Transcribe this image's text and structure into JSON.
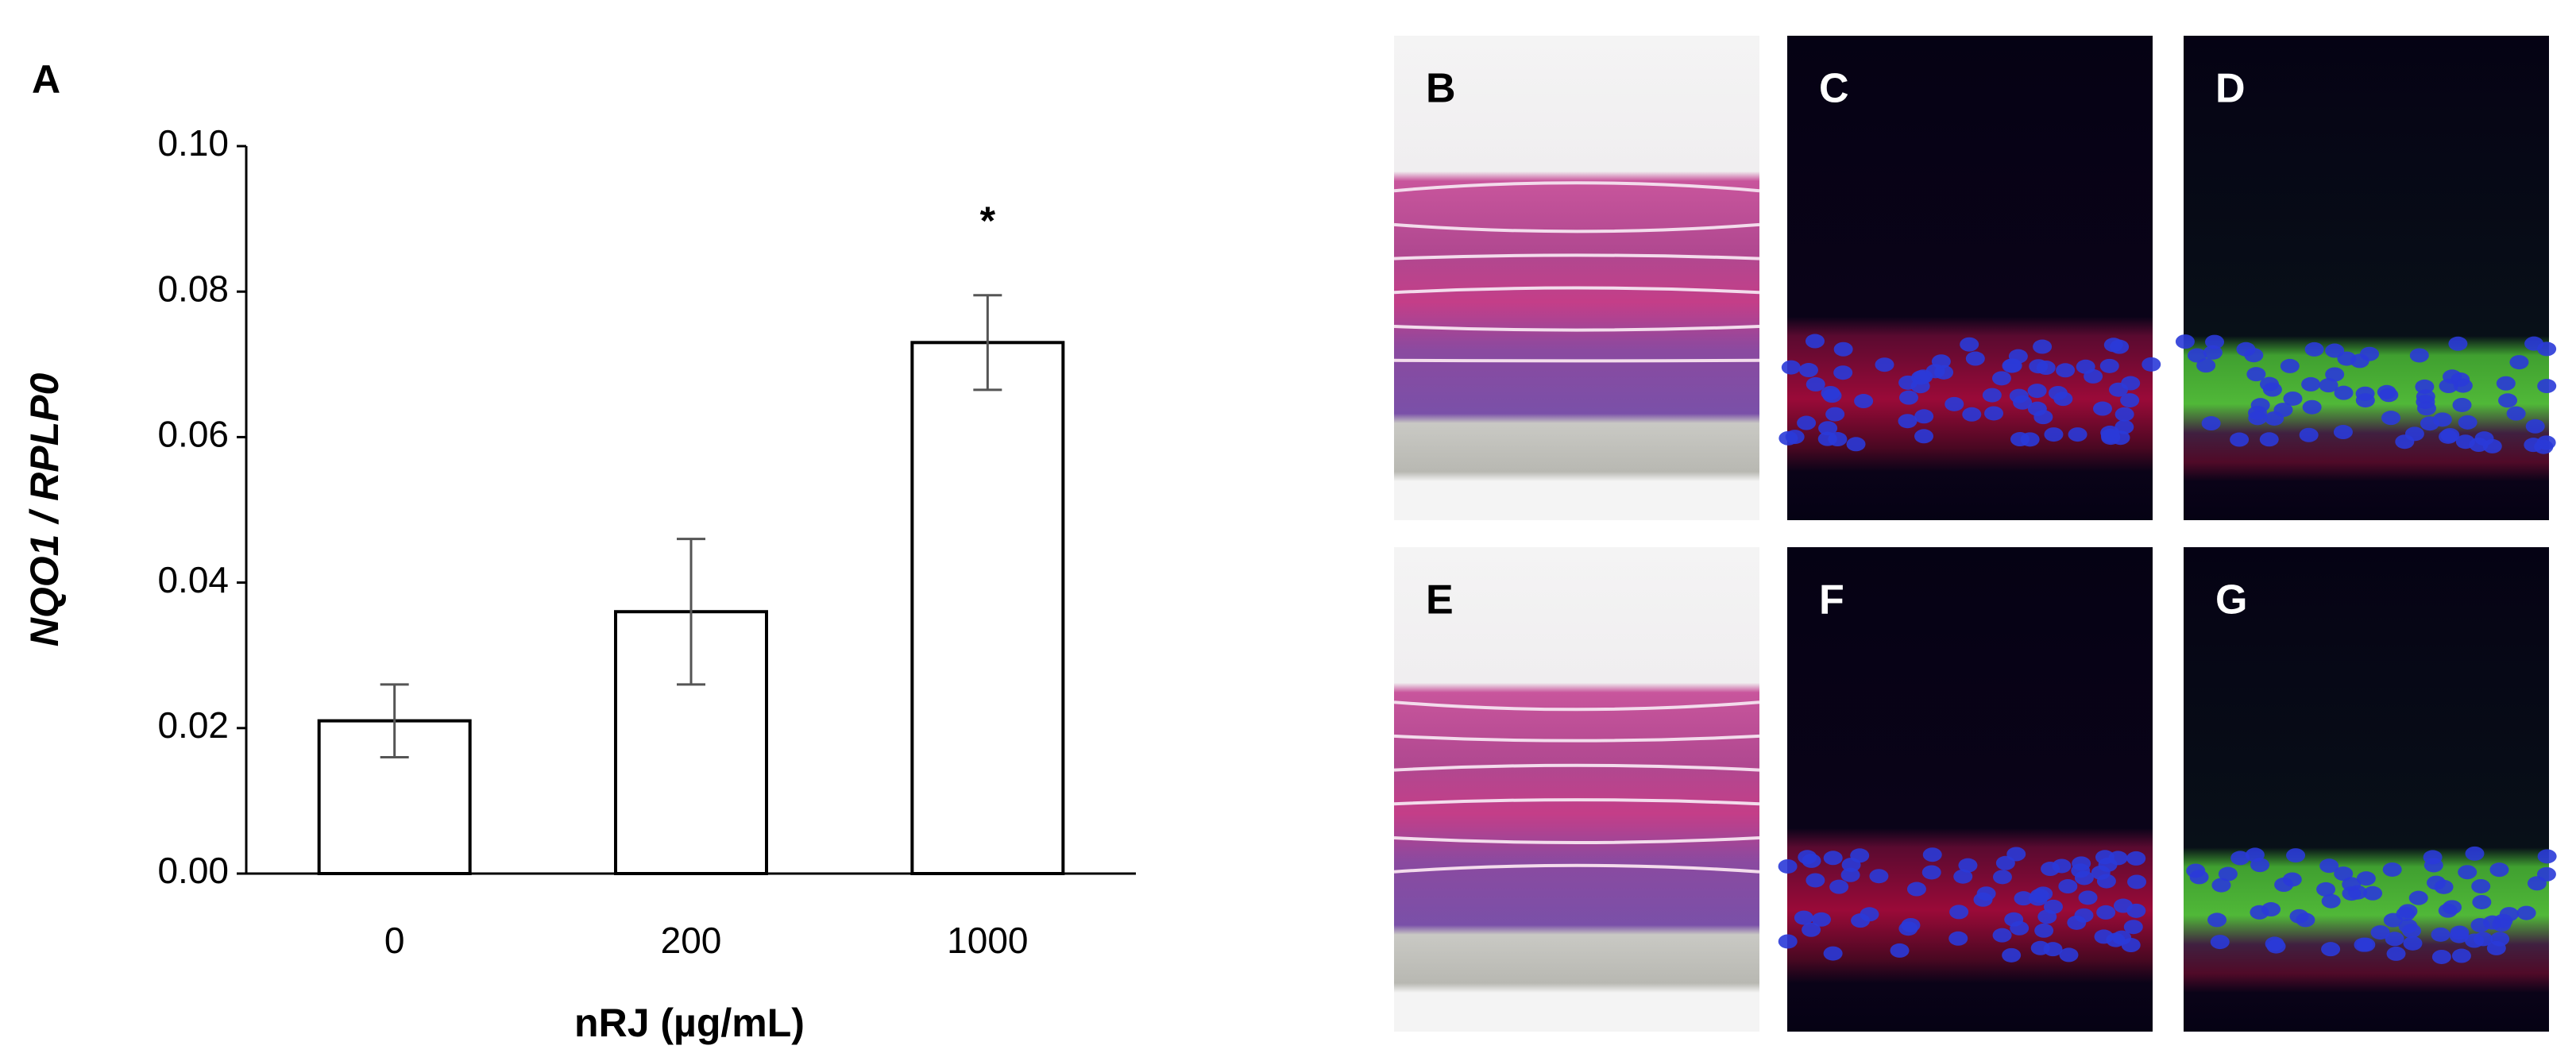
{
  "chart_data": {
    "type": "bar",
    "panel_label": "A",
    "categories": [
      "0",
      "200",
      "1000"
    ],
    "values": [
      0.021,
      0.036,
      0.073
    ],
    "errors": [
      0.005,
      0.01,
      0.0065
    ],
    "significance": [
      null,
      null,
      "*"
    ],
    "color": "#ffffff",
    "x_label": "nRJ (µg/mL)",
    "y_label": "NQO1 / RPLP0",
    "ylim": [
      0,
      0.1
    ],
    "yticks": [
      {
        "value": 0,
        "label": "0.00"
      },
      0.02,
      0.04,
      0.06,
      0.08,
      {
        "value": 0.1,
        "label": "0.10"
      }
    ],
    "grid": false
  },
  "figure_panels": [
    {
      "label": "B",
      "stain": "he"
    },
    {
      "label": "C",
      "stain": "red-blue"
    },
    {
      "label": "D",
      "stain": "green-blue"
    },
    {
      "label": "E",
      "stain": "he"
    },
    {
      "label": "F",
      "stain": "red-blue"
    },
    {
      "label": "G",
      "stain": "green-blue"
    }
  ]
}
